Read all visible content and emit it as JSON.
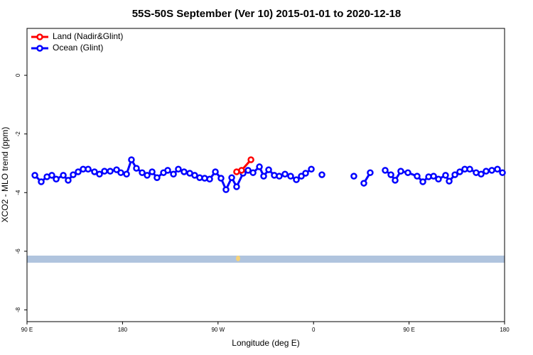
{
  "chart_data": {
    "type": "line",
    "title": "55S-50S September (Ver 10)   2015-01-01 to 2020-12-18",
    "xlabel": "Longitude (deg E)",
    "ylabel": "XCO2 - MLO trend (ppm)",
    "xlim": [
      90,
      540
    ],
    "xticks": [
      {
        "value": 90,
        "label": "90 E"
      },
      180,
      {
        "value": 270,
        "label": "90 W"
      },
      {
        "value": 360,
        "label": "0"
      },
      {
        "value": 450,
        "label": "90 E"
      },
      {
        "value": 540,
        "label": "180"
      }
    ],
    "ylim": [
      -8.4,
      1.6
    ],
    "yticks": [
      -8,
      -6,
      -4,
      -2,
      0
    ],
    "legend": "top-left",
    "series": [
      {
        "name": "Ocean (Glint)",
        "color": "#0000ff",
        "x": [
          97.4,
          103.4,
          108.8,
          113.4,
          117.5,
          124.2,
          128.8,
          133.5,
          138.2,
          142.9,
          147.6,
          153.6,
          158.3,
          163.0,
          168.4,
          174.4,
          178.4,
          183.8,
          188.4,
          193.1,
          198.5,
          203.2,
          207.9,
          212.5,
          218.6,
          222.6,
          228.0,
          232.6,
          238.0,
          243.4,
          248.0,
          252.7,
          257.4,
          262.1,
          267.5,
          272.8,
          277.5,
          282.9,
          287.5,
          293.6,
          298.3,
          303.0,
          309.0,
          313.0,
          317.7,
          323.0,
          327.7,
          333.1,
          338.4,
          343.8,
          348.5,
          352.5,
          357.9,
          362.9,
          367.9,
          383.0,
          398.0,
          402.7,
          407.4,
          413.4,
          420.5,
          427.5,
          432.9,
          436.9,
          442.2,
          448.9,
          457.6,
          463.0,
          468.4,
          473.1,
          477.7,
          484.4,
          487.8,
          493.2,
          497.8,
          502.5,
          507.2,
          513.2,
          517.9,
          522.6,
          528.0,
          533.3,
          538.0
        ],
        "values": [
          -3.41,
          -3.63,
          -3.46,
          -3.41,
          -3.54,
          -3.41,
          -3.58,
          -3.39,
          -3.29,
          -3.2,
          -3.2,
          -3.29,
          -3.37,
          -3.27,
          -3.27,
          -3.22,
          -3.32,
          -3.37,
          -2.88,
          -3.17,
          -3.32,
          -3.41,
          -3.29,
          -3.49,
          -3.32,
          -3.24,
          -3.37,
          -3.2,
          -3.29,
          -3.34,
          -3.41,
          -3.49,
          -3.51,
          -3.54,
          -3.29,
          -3.51,
          -3.9,
          -3.49,
          -3.8,
          -3.34,
          -3.24,
          -3.32,
          -3.12,
          -3.44,
          -3.22,
          -3.41,
          -3.44,
          -3.37,
          -3.44,
          -3.56,
          -3.44,
          -3.34,
          -3.2,
          null,
          -3.39,
          null,
          -3.44,
          null,
          -3.68,
          -3.32,
          null,
          -3.24,
          -3.39,
          -3.58,
          -3.27,
          -3.32,
          -3.44,
          -3.63,
          -3.46,
          -3.44,
          -3.54,
          -3.41,
          -3.61,
          -3.39,
          -3.29,
          -3.2,
          -3.2,
          -3.32,
          -3.37,
          -3.27,
          -3.24,
          -3.2,
          -3.32
        ]
      },
      {
        "name": "Land (Nadir&Glint)",
        "color": "#ff0000",
        "x": [
          287.5,
          292.2,
          301.0
        ],
        "values": [
          -3.29,
          -3.24,
          -2.88
        ]
      }
    ]
  }
}
